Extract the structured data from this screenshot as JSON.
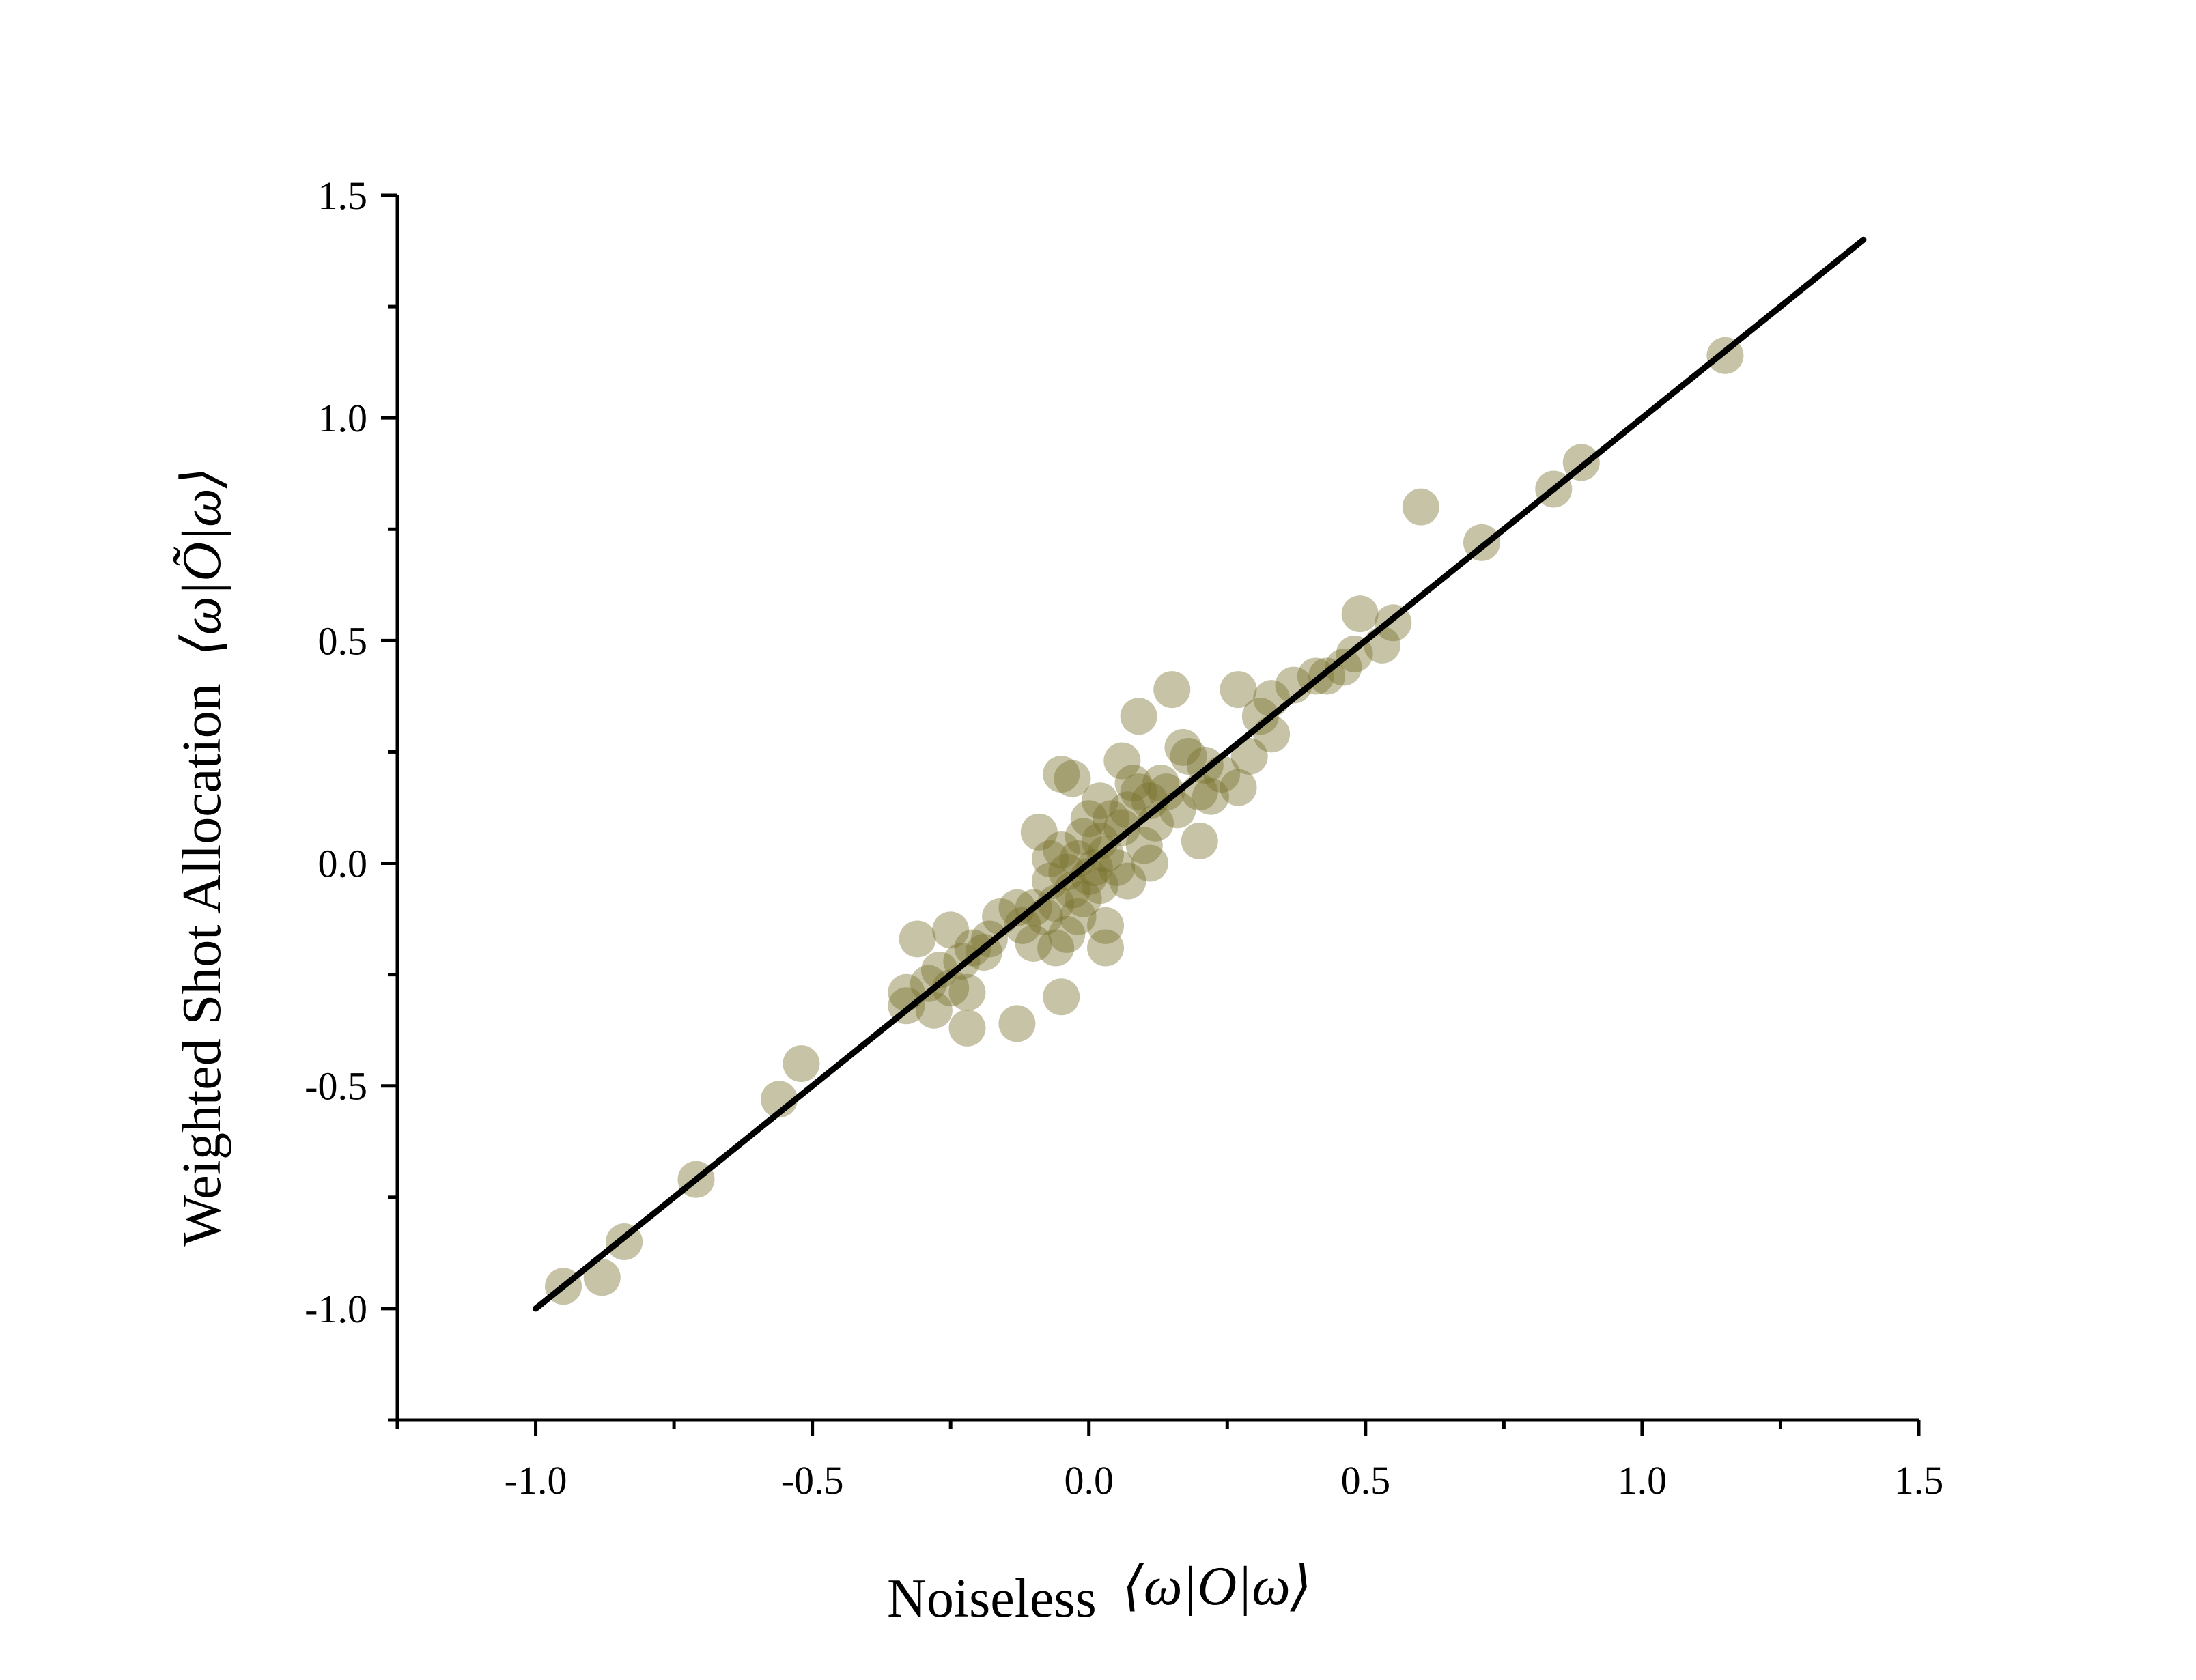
{
  "chart_data": {
    "type": "scatter",
    "title": "",
    "xlabel": "Noiseless ⟨ω|O|ω⟩",
    "xlabel_text": "Noiseless",
    "xlabel_math": "⟨ω|O|ω⟩",
    "ylabel": "Weighted Shot Allocation ⟨ω|Õ|ω⟩",
    "ylabel_text": "Weighted Shot Allocation",
    "ylabel_math": "⟨ω|Õ|ω⟩",
    "xlim": [
      -1.25,
      1.5
    ],
    "ylim": [
      -1.25,
      1.5
    ],
    "xticks": [
      -1.0,
      -0.5,
      0.0,
      0.5,
      1.0,
      1.5
    ],
    "yticks": [
      -1.0,
      -0.5,
      0.0,
      0.5,
      1.0,
      1.5
    ],
    "xtick_labels": [
      "-1.0",
      "-0.5",
      "0.0",
      "0.5",
      "1.0",
      "1.5"
    ],
    "ytick_labels": [
      "-1.0",
      "-0.5",
      "0.0",
      "0.5",
      "1.0",
      "1.5"
    ],
    "grid": false,
    "legend": "none",
    "point_color": "#76702b",
    "line_color": "#000000",
    "fit_line": {
      "x": [
        -1.0,
        1.4
      ],
      "y": [
        -1.0,
        1.4
      ]
    },
    "series": [
      {
        "points": [
          [
            1.15,
            1.14
          ],
          [
            0.89,
            0.9
          ],
          [
            0.84,
            0.84
          ],
          [
            0.6,
            0.8
          ],
          [
            0.71,
            0.72
          ],
          [
            0.49,
            0.56
          ],
          [
            0.55,
            0.54
          ],
          [
            0.53,
            0.49
          ],
          [
            0.48,
            0.47
          ],
          [
            0.46,
            0.44
          ],
          [
            0.43,
            0.42
          ],
          [
            0.41,
            0.42
          ],
          [
            0.37,
            0.4
          ],
          [
            0.15,
            0.39
          ],
          [
            0.27,
            0.39
          ],
          [
            0.33,
            0.37
          ],
          [
            0.31,
            0.33
          ],
          [
            0.09,
            0.33
          ],
          [
            0.33,
            0.29
          ],
          [
            0.17,
            0.26
          ],
          [
            0.18,
            0.24
          ],
          [
            0.29,
            0.24
          ],
          [
            0.21,
            0.22
          ],
          [
            0.24,
            0.2
          ],
          [
            0.06,
            0.23
          ],
          [
            -0.05,
            0.2
          ],
          [
            -0.03,
            0.19
          ],
          [
            0.27,
            0.17
          ],
          [
            0.13,
            0.18
          ],
          [
            0.2,
            0.16
          ],
          [
            0.22,
            0.15
          ],
          [
            0.09,
            0.16
          ],
          [
            0.11,
            0.14
          ],
          [
            0.16,
            0.12
          ],
          [
            0.07,
            0.12
          ],
          [
            0.02,
            0.14
          ],
          [
            0.0,
            0.1
          ],
          [
            0.04,
            0.1
          ],
          [
            0.12,
            0.09
          ],
          [
            0.06,
            0.08
          ],
          [
            -0.01,
            0.06
          ],
          [
            -0.09,
            0.07
          ],
          [
            0.02,
            0.05
          ],
          [
            0.2,
            0.05
          ],
          [
            0.1,
            0.04
          ],
          [
            0.03,
            0.02
          ],
          [
            -0.05,
            0.03
          ],
          [
            -0.02,
            0.01
          ],
          [
            0.11,
            0.0
          ],
          [
            0.05,
            -0.01
          ],
          [
            -0.04,
            -0.02
          ],
          [
            0.0,
            -0.03
          ],
          [
            0.07,
            -0.04
          ],
          [
            -0.07,
            -0.04
          ],
          [
            -0.03,
            -0.06
          ],
          [
            0.02,
            -0.05
          ],
          [
            -0.01,
            -0.08
          ],
          [
            -0.06,
            -0.09
          ],
          [
            -0.1,
            -0.1
          ],
          [
            -0.13,
            -0.1
          ],
          [
            -0.02,
            -0.12
          ],
          [
            0.03,
            -0.14
          ],
          [
            -0.08,
            -0.12
          ],
          [
            -0.16,
            -0.12
          ],
          [
            -0.12,
            -0.14
          ],
          [
            -0.04,
            -0.16
          ],
          [
            -0.18,
            -0.17
          ],
          [
            -0.1,
            -0.18
          ],
          [
            -0.06,
            -0.19
          ],
          [
            0.03,
            -0.19
          ],
          [
            -0.31,
            -0.17
          ],
          [
            -0.25,
            -0.15
          ],
          [
            -0.21,
            -0.19
          ],
          [
            -0.19,
            -0.2
          ],
          [
            -0.23,
            -0.22
          ],
          [
            -0.27,
            -0.24
          ],
          [
            -0.29,
            -0.27
          ],
          [
            -0.25,
            -0.28
          ],
          [
            -0.33,
            -0.29
          ],
          [
            -0.22,
            -0.29
          ],
          [
            -0.05,
            -0.3
          ],
          [
            -0.33,
            -0.32
          ],
          [
            -0.28,
            -0.33
          ],
          [
            -0.22,
            -0.37
          ],
          [
            -0.13,
            -0.36
          ],
          [
            -0.52,
            -0.45
          ],
          [
            -0.56,
            -0.53
          ],
          [
            -0.71,
            -0.71
          ],
          [
            -0.84,
            -0.85
          ],
          [
            -0.88,
            -0.93
          ],
          [
            -0.95,
            -0.95
          ],
          [
            0.14,
            0.16
          ],
          [
            0.08,
            0.18
          ],
          [
            -0.07,
            0.01
          ],
          [
            0.01,
            -0.01
          ]
        ]
      }
    ]
  }
}
